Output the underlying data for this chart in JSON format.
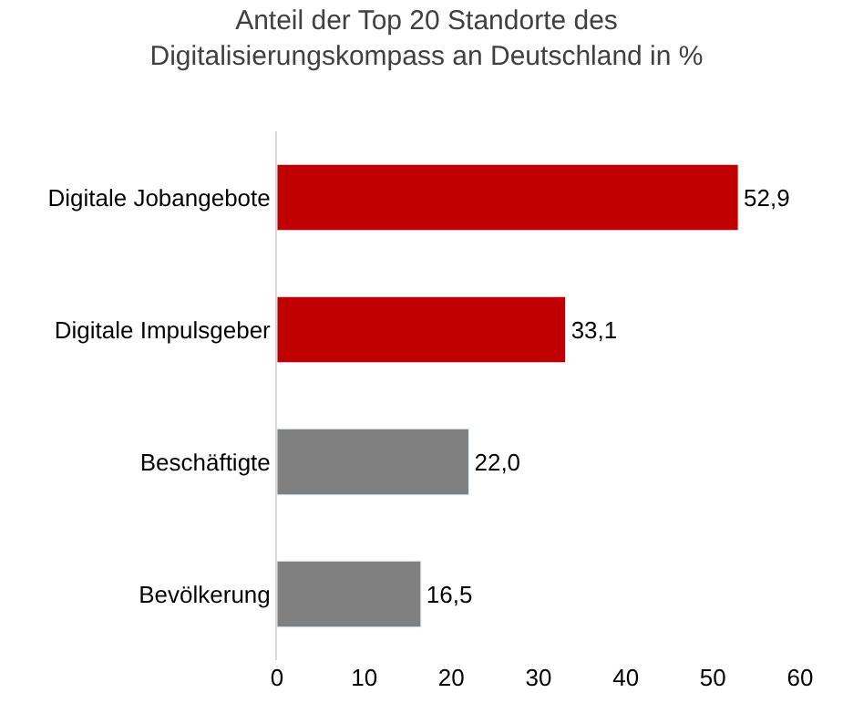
{
  "chart_data": {
    "type": "bar",
    "orientation": "horizontal",
    "title": "Anteil der Top 20 Standorte des\nDigitalisierungskompass an Deutschland in %",
    "categories": [
      "Digitale Jobangebote",
      "Digitale Impulsgeber",
      "Beschäftigte",
      "Bevölkerung"
    ],
    "values": [
      52.9,
      33.1,
      22.0,
      16.5
    ],
    "colors": [
      "#c00000",
      "#c00000",
      "#808080",
      "#808080"
    ],
    "value_labels": [
      "52,9",
      "33,1",
      "22,0",
      "16,5"
    ],
    "xlim": [
      0,
      60
    ],
    "xticks": [
      0,
      10,
      20,
      30,
      40,
      50,
      60
    ],
    "grid": false,
    "legend": false
  }
}
